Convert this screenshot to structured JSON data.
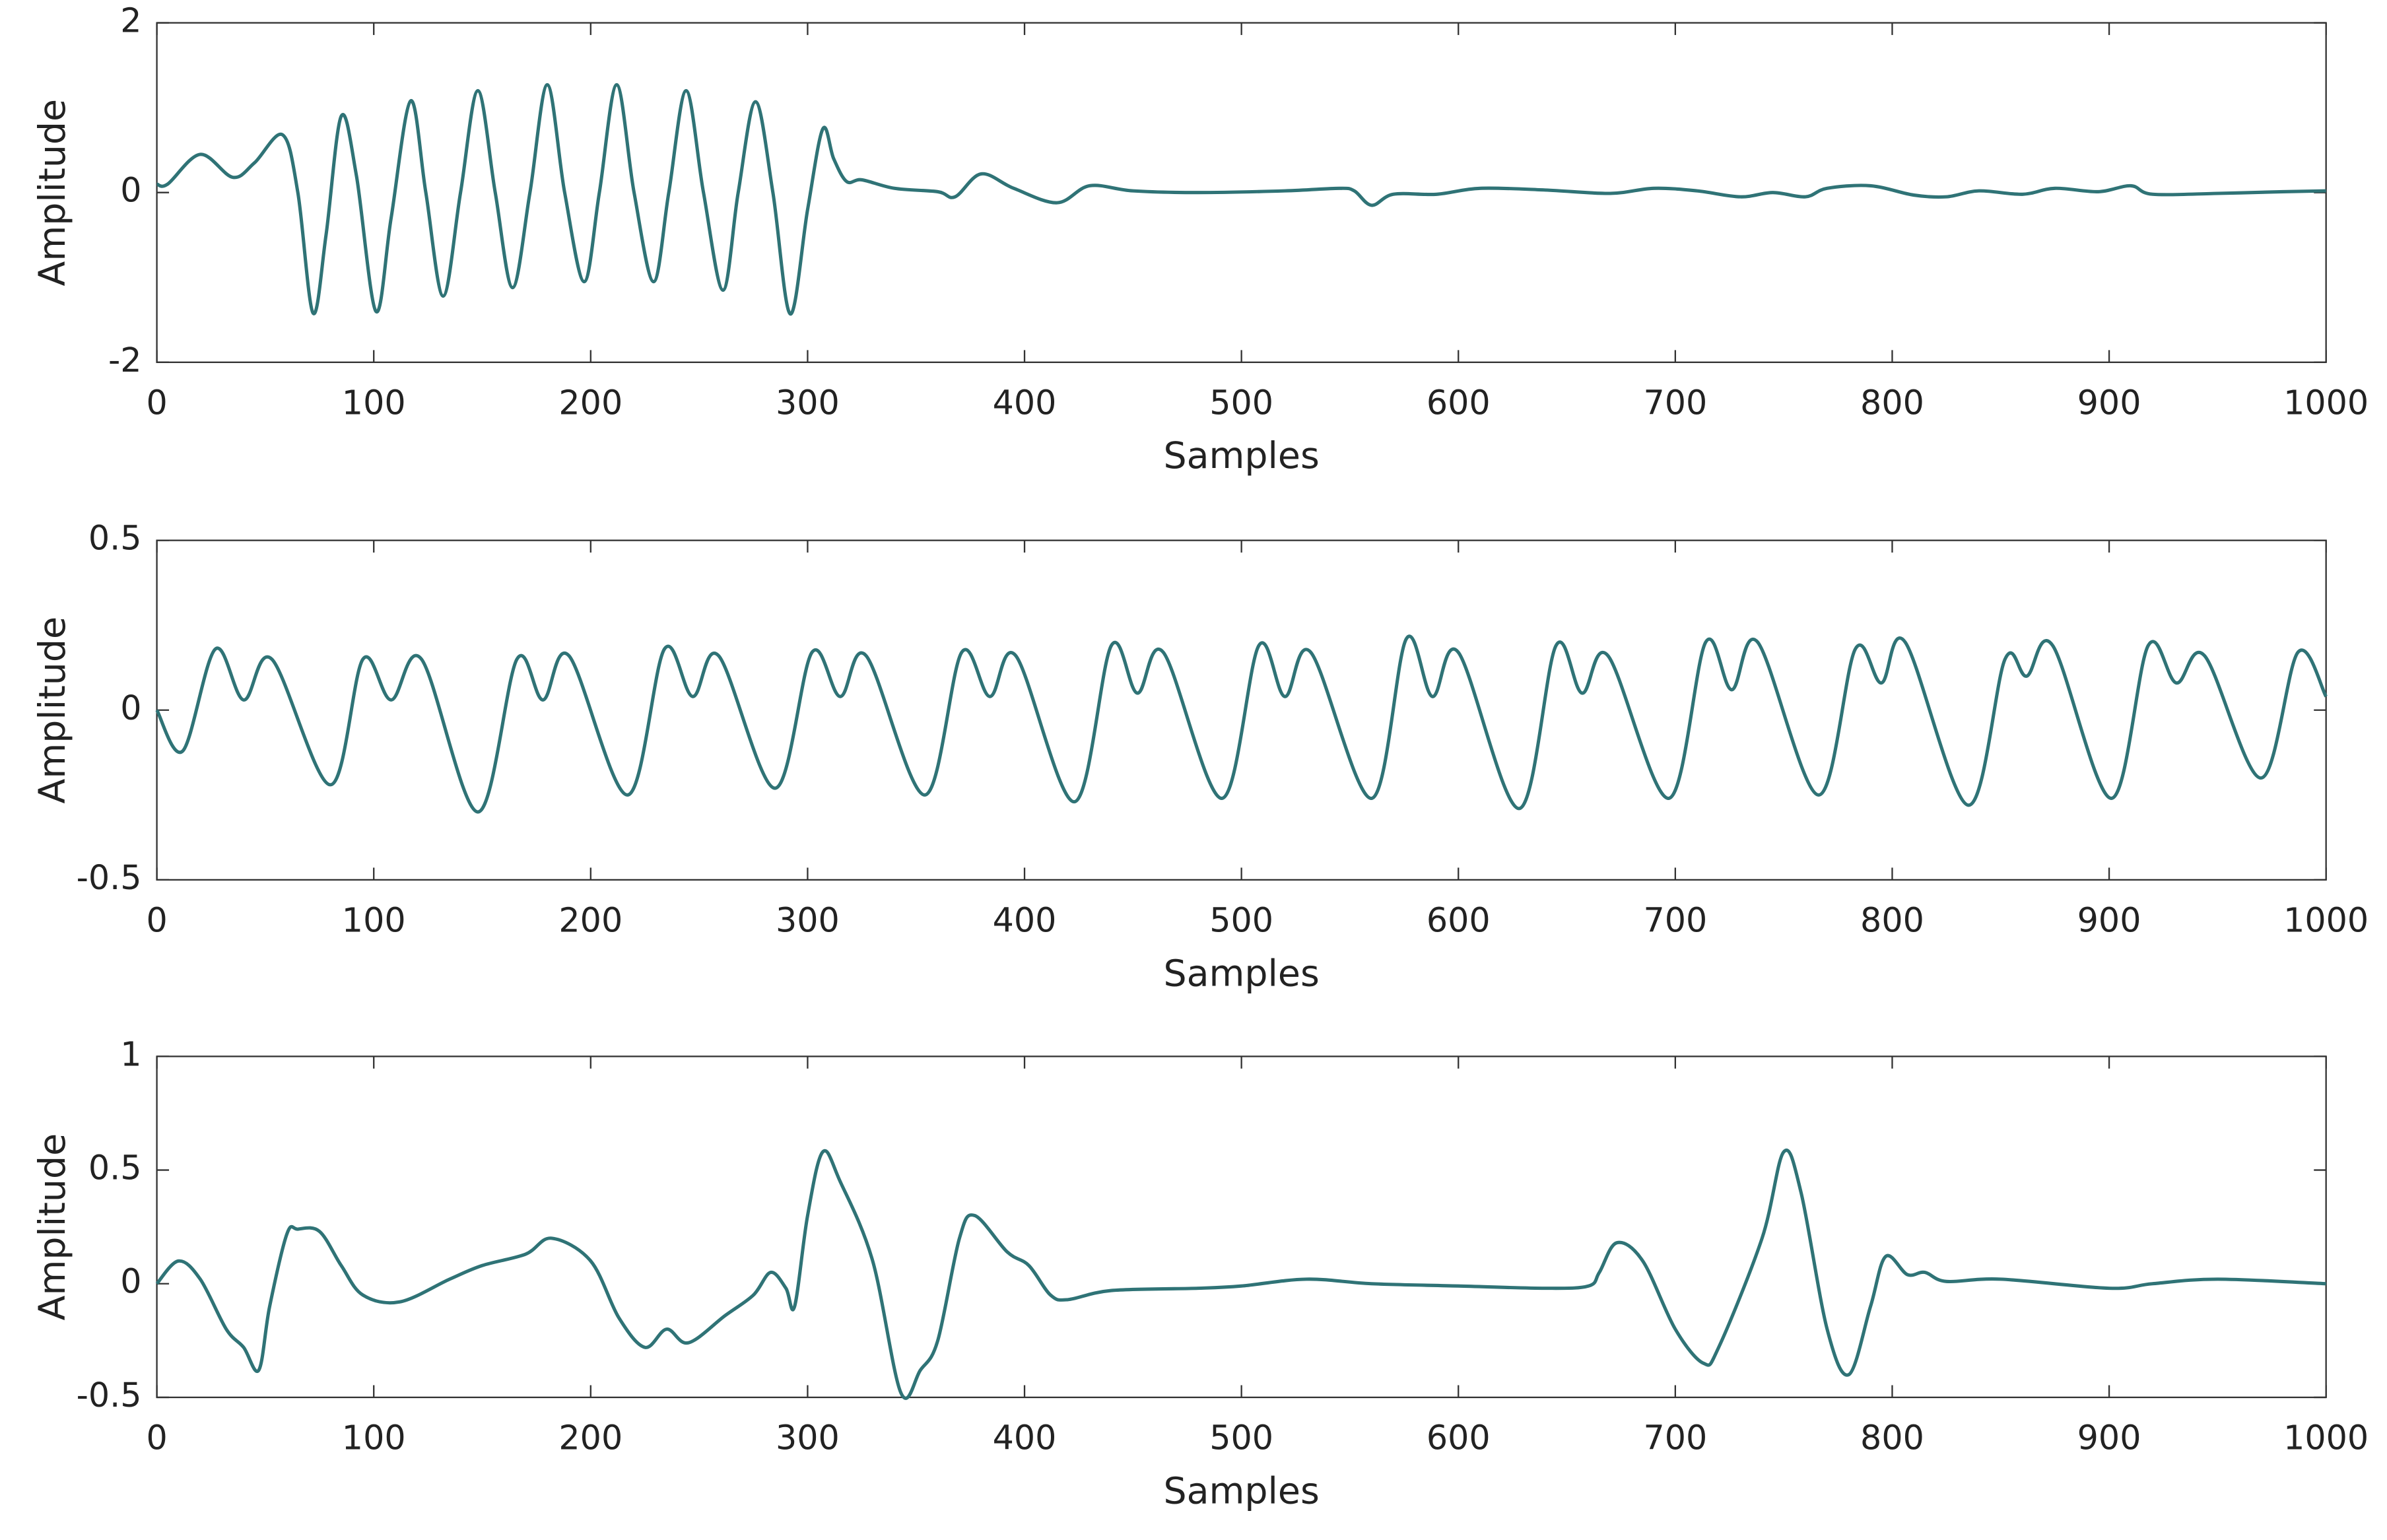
{
  "chart_data": [
    {
      "type": "line",
      "xlabel": "Samples",
      "ylabel": "Amplitude",
      "xlim": [
        0,
        1000
      ],
      "xticks": [
        0,
        100,
        200,
        300,
        400,
        500,
        600,
        700,
        800,
        900,
        1000
      ],
      "ylim": [
        -2,
        2
      ],
      "yticks": [
        -2,
        0,
        2
      ],
      "x": [
        0,
        5,
        20,
        35,
        45,
        58,
        65,
        72,
        78,
        85,
        92,
        101,
        108,
        117,
        124,
        132,
        140,
        148,
        156,
        164,
        172,
        180,
        188,
        197,
        204,
        212,
        220,
        229,
        236,
        244,
        252,
        261,
        268,
        276,
        284,
        292,
        300,
        307,
        312,
        318,
        325,
        340,
        360,
        368,
        380,
        395,
        415,
        430,
        450,
        480,
        520,
        545,
        552,
        560,
        570,
        590,
        610,
        640,
        670,
        690,
        710,
        730,
        745,
        760,
        770,
        790,
        810,
        825,
        840,
        860,
        875,
        895,
        910,
        920,
        950,
        980,
        1000
      ],
      "series": [
        {
          "color": "#2f7376",
          "values": [
            0.1,
            0.1,
            0.45,
            0.18,
            0.35,
            0.68,
            0,
            -1.42,
            -0.5,
            0.9,
            0.2,
            -1.4,
            -0.3,
            1.08,
            0,
            -1.22,
            0,
            1.2,
            0,
            -1.12,
            0,
            1.27,
            0,
            -1.05,
            0,
            1.27,
            0,
            -1.05,
            0,
            1.2,
            0,
            -1.15,
            0,
            1.07,
            0,
            -1.43,
            -0.2,
            0.75,
            0.4,
            0.13,
            0.15,
            0.05,
            0.01,
            -0.05,
            0.22,
            0.05,
            -0.12,
            0.08,
            0.02,
            0,
            0.02,
            0.05,
            0.02,
            -0.15,
            -0.02,
            -0.02,
            0.05,
            0.03,
            -0.01,
            0.05,
            0.02,
            -0.05,
            0,
            -0.05,
            0.05,
            0.08,
            -0.03,
            -0.05,
            0.02,
            -0.02,
            0.05,
            0.01,
            0.08,
            -0.02,
            -0.01,
            0.01,
            0.02
          ]
        }
      ]
    },
    {
      "type": "line",
      "xlabel": "Samples",
      "ylabel": "Amplitude",
      "xlim": [
        0,
        1000
      ],
      "xticks": [
        0,
        100,
        200,
        300,
        400,
        500,
        600,
        700,
        800,
        900,
        1000
      ],
      "ylim": [
        -0.5,
        0.5
      ],
      "yticks": [
        -0.5,
        0,
        0.5
      ],
      "x": [
        0,
        12,
        27,
        40,
        53,
        80,
        95,
        108,
        122,
        148,
        166,
        178,
        190,
        217,
        234,
        247,
        259,
        285,
        302,
        315,
        327,
        354,
        371,
        384,
        396,
        423,
        440,
        452,
        464,
        491,
        508,
        520,
        532,
        560,
        576,
        588,
        600,
        628,
        645,
        657,
        669,
        697,
        714,
        726,
        738,
        766,
        783,
        795,
        806,
        835,
        852,
        862,
        874,
        901,
        918,
        931,
        944,
        970,
        987,
        1000
      ],
      "series": [
        {
          "color": "#2f7376",
          "values": [
            0,
            -0.12,
            0.18,
            0.03,
            0.15,
            -0.22,
            0.15,
            0.03,
            0.15,
            -0.3,
            0.15,
            0.03,
            0.16,
            -0.25,
            0.18,
            0.04,
            0.16,
            -0.23,
            0.17,
            0.04,
            0.16,
            -0.25,
            0.17,
            0.04,
            0.16,
            -0.27,
            0.19,
            0.05,
            0.17,
            -0.26,
            0.19,
            0.04,
            0.17,
            -0.26,
            0.21,
            0.04,
            0.17,
            -0.29,
            0.19,
            0.05,
            0.16,
            -0.26,
            0.2,
            0.06,
            0.2,
            -0.25,
            0.18,
            0.08,
            0.2,
            -0.28,
            0.15,
            0.1,
            0.19,
            -0.26,
            0.19,
            0.08,
            0.16,
            -0.2,
            0.17,
            0.04
          ]
        }
      ]
    },
    {
      "type": "line",
      "xlabel": "Samples",
      "ylabel": "Amplitude",
      "xlim": [
        0,
        1000
      ],
      "xticks": [
        0,
        100,
        200,
        300,
        400,
        500,
        600,
        700,
        800,
        900,
        1000
      ],
      "ylim": [
        -0.5,
        1
      ],
      "yticks": [
        -0.5,
        0,
        0.5,
        1
      ],
      "x": [
        0,
        10,
        20,
        32,
        40,
        47,
        52,
        60,
        65,
        75,
        85,
        95,
        112,
        135,
        150,
        170,
        182,
        200,
        213,
        225,
        235,
        245,
        262,
        275,
        283,
        290,
        294,
        300,
        307,
        315,
        330,
        343,
        352,
        360,
        370,
        377,
        392,
        402,
        412,
        420,
        440,
        480,
        500,
        530,
        560,
        600,
        640,
        660,
        665,
        673,
        685,
        700,
        713,
        720,
        740,
        750,
        758,
        770,
        780,
        790,
        797,
        807,
        815,
        825,
        850,
        900,
        920,
        950,
        1000
      ],
      "series": [
        {
          "color": "#2f7376",
          "values": [
            0,
            0.1,
            0.02,
            -0.2,
            -0.28,
            -0.38,
            -0.1,
            0.22,
            0.24,
            0.23,
            0.08,
            -0.05,
            -0.08,
            0.02,
            0.08,
            0.13,
            0.2,
            0.1,
            -0.15,
            -0.28,
            -0.2,
            -0.26,
            -0.14,
            -0.05,
            0.05,
            -0.02,
            -0.1,
            0.3,
            0.58,
            0.45,
            0.1,
            -0.48,
            -0.38,
            -0.25,
            0.2,
            0.3,
            0.14,
            0.08,
            -0.05,
            -0.07,
            -0.03,
            -0.02,
            -0.01,
            0.02,
            0,
            -0.01,
            -0.02,
            -0.01,
            0.05,
            0.18,
            0.1,
            -0.2,
            -0.35,
            -0.28,
            0.2,
            0.58,
            0.4,
            -0.2,
            -0.4,
            -0.1,
            0.12,
            0.04,
            0.05,
            0.01,
            0.02,
            -0.02,
            0,
            0.02,
            0
          ]
        }
      ]
    }
  ]
}
